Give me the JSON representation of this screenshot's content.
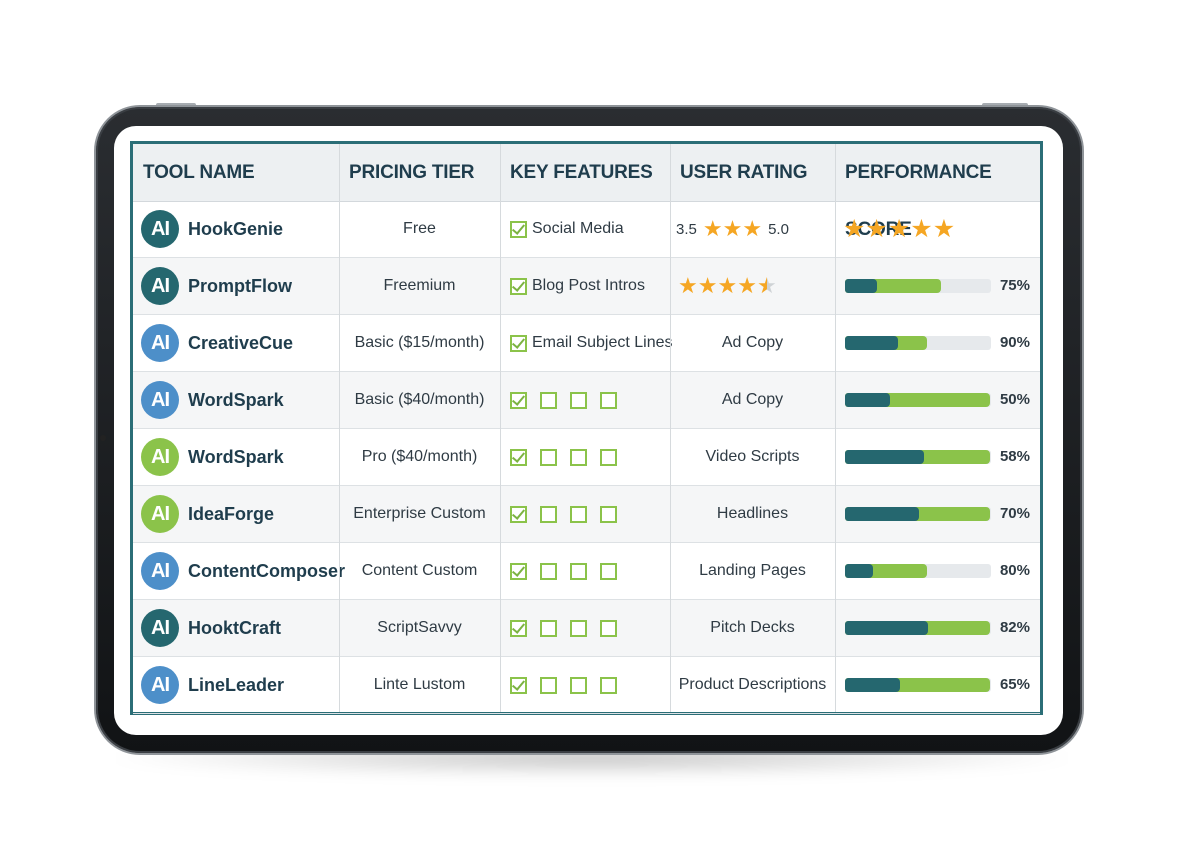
{
  "colors": {
    "frame": "#2b6e77",
    "green": "#8bc34a",
    "teal": "#25676f",
    "blue": "#4d8fc9",
    "star": "#f5a623"
  },
  "columns": [
    "TOOL NAME",
    "PRICING TIER",
    "KEY FEATURES",
    "USER RATING",
    "PERFORMANCE SCORE"
  ],
  "logo_text": "AI",
  "rows": [
    {
      "name": "HookGenie",
      "logo_color": "#25676f",
      "pricing": "Free",
      "feature_text": "Social Media",
      "checks": [
        true
      ],
      "rating_type": "range",
      "rating_low": "3.5",
      "rating_high": "5.0",
      "rating_stars": 3,
      "score_type": "stars",
      "score_stars": 5
    },
    {
      "name": "PromptFlow",
      "logo_color": "#25676f",
      "pricing": "Freemium",
      "feature_text": "Blog Post Intros",
      "checks": [
        true
      ],
      "rating_type": "stars",
      "rating_value": 4.5,
      "score_type": "bar",
      "green": 0.66,
      "teal": 0.22,
      "score": "75%"
    },
    {
      "name": "CreativeCue",
      "logo_color": "#4d8fc9",
      "pricing": "Basic ($15/month)",
      "feature_text": "Email Subject Lines",
      "checks": [
        true
      ],
      "rating_type": "text",
      "rating_text": "Ad Copy",
      "score_type": "bar",
      "green": 0.56,
      "teal": 0.36,
      "score": "90%"
    },
    {
      "name": "WordSpark",
      "logo_color": "#4d8fc9",
      "pricing": "Basic ($40/month)",
      "feature_text": "",
      "checks": [
        true,
        false,
        false,
        false
      ],
      "rating_type": "text",
      "rating_text": "Ad Copy",
      "score_type": "bar",
      "green": 0.99,
      "teal": 0.31,
      "score": "50%"
    },
    {
      "name": "WordSpark",
      "logo_color": "#8bc34a",
      "pricing": "Pro ($40/month)",
      "feature_text": "",
      "checks": [
        true,
        false,
        false,
        false
      ],
      "rating_type": "text",
      "rating_text": "Video Scripts",
      "score_type": "bar",
      "green": 0.99,
      "teal": 0.54,
      "score": "58%"
    },
    {
      "name": "IdeaForge",
      "logo_color": "#8bc34a",
      "pricing": "Enterprise Custom",
      "feature_text": "",
      "checks": [
        true,
        false,
        false,
        false
      ],
      "rating_type": "text",
      "rating_text": "Headlines",
      "score_type": "bar",
      "green": 0.99,
      "teal": 0.51,
      "score": "70%"
    },
    {
      "name": "ContentComposer",
      "logo_color": "#4d8fc9",
      "pricing": "Content Custom",
      "feature_text": "",
      "checks": [
        true,
        false,
        false,
        false
      ],
      "rating_type": "text",
      "rating_text": "Landing Pages",
      "score_type": "bar",
      "green": 0.56,
      "teal": 0.19,
      "score": "80%"
    },
    {
      "name": "HooktCraft",
      "logo_color": "#25676f",
      "pricing": "ScriptSavvy",
      "feature_text": "",
      "checks": [
        true,
        false,
        false,
        false
      ],
      "rating_type": "text",
      "rating_text": "Pitch Decks",
      "score_type": "bar",
      "green": 0.99,
      "teal": 0.57,
      "score": "82%"
    },
    {
      "name": "LineLeader",
      "logo_color": "#4d8fc9",
      "pricing": "Linte Lustom",
      "feature_text": "",
      "checks": [
        true,
        false,
        false,
        false
      ],
      "rating_type": "text",
      "rating_text": "Product Descriptions",
      "score_type": "bar",
      "green": 0.99,
      "teal": 0.38,
      "score": "65%"
    }
  ]
}
